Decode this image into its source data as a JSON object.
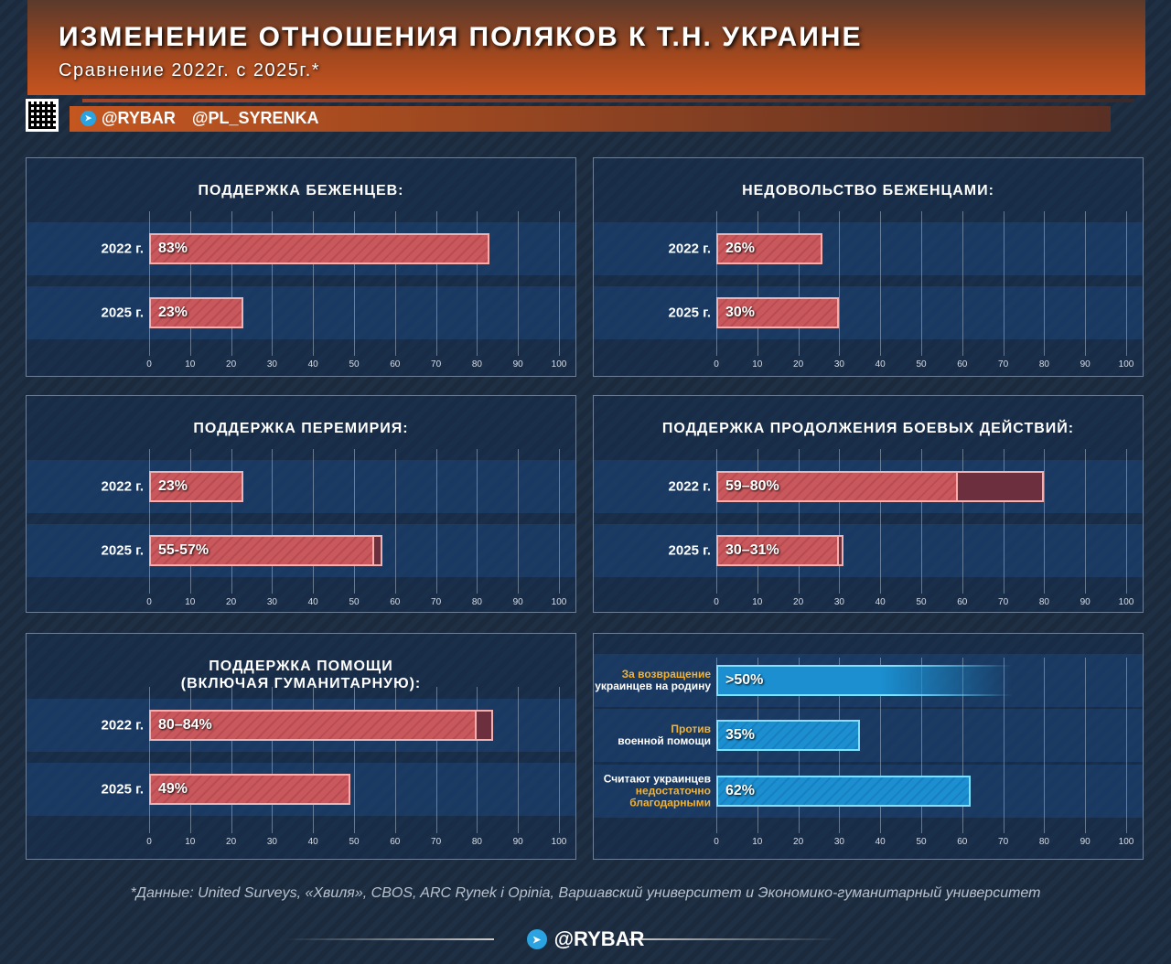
{
  "header": {
    "title": "ИЗМЕНЕНИЕ ОТНОШЕНИЯ ПОЛЯКОВ К Т.Н. УКРАИНЕ",
    "subtitle": "Сравнение 2022г. с 2025г.*",
    "handle1": "@RYBAR",
    "handle2": "@PL_SYRENKA"
  },
  "chart_data": [
    {
      "type": "bar",
      "title": "ПОДДЕРЖКА БЕЖЕНЦЕВ:",
      "categories": [
        "2022 г.",
        "2025 г."
      ],
      "values": [
        [
          83,
          83
        ],
        [
          23,
          23
        ]
      ],
      "labels": [
        "83%",
        "23%"
      ],
      "xlim": [
        0,
        100
      ],
      "ticks": [
        0,
        10,
        20,
        30,
        40,
        50,
        60,
        70,
        80,
        90,
        100
      ]
    },
    {
      "type": "bar",
      "title": "НЕДОВОЛЬСТВО БЕЖЕНЦАМИ:",
      "categories": [
        "2022 г.",
        "2025 г."
      ],
      "values": [
        [
          26,
          26
        ],
        [
          30,
          30
        ]
      ],
      "labels": [
        "26%",
        "30%"
      ],
      "xlim": [
        0,
        100
      ],
      "ticks": [
        0,
        10,
        20,
        30,
        40,
        50,
        60,
        70,
        80,
        90,
        100
      ]
    },
    {
      "type": "bar",
      "title": "ПОДДЕРЖКА ПЕРЕМИРИЯ:",
      "categories": [
        "2022 г.",
        "2025 г."
      ],
      "values": [
        [
          23,
          23
        ],
        [
          55,
          57
        ]
      ],
      "labels": [
        "23%",
        "55-57%"
      ],
      "xlim": [
        0,
        100
      ],
      "ticks": [
        0,
        10,
        20,
        30,
        40,
        50,
        60,
        70,
        80,
        90,
        100
      ]
    },
    {
      "type": "bar",
      "title": "ПОДДЕРЖКА ПРОДОЛЖЕНИЯ БОЕВЫХ ДЕЙСТВИЙ:",
      "categories": [
        "2022 г.",
        "2025 г."
      ],
      "values": [
        [
          59,
          80
        ],
        [
          30,
          31
        ]
      ],
      "labels": [
        "59–80%",
        "30–31%"
      ],
      "xlim": [
        0,
        100
      ],
      "ticks": [
        0,
        10,
        20,
        30,
        40,
        50,
        60,
        70,
        80,
        90,
        100
      ]
    },
    {
      "type": "bar",
      "title": "ПОДДЕРЖКА ПОМОЩИ",
      "title2": "(ВКЛЮЧАЯ ГУМАНИТАРНУЮ):",
      "categories": [
        "2022 г.",
        "2025 г."
      ],
      "values": [
        [
          80,
          84
        ],
        [
          49,
          49
        ]
      ],
      "labels": [
        "80–84%",
        "49%"
      ],
      "xlim": [
        0,
        100
      ],
      "ticks": [
        0,
        10,
        20,
        30,
        40,
        50,
        60,
        70,
        80,
        90,
        100
      ]
    },
    {
      "type": "bar",
      "title": "",
      "categories": [
        [
          {
            "t": "За возвращение",
            "y": true
          },
          {
            "t": "украинцев на родину",
            "y": false
          }
        ],
        [
          {
            "t": "Против",
            "y": true
          },
          {
            "t": "военной помощи",
            "y": false
          }
        ],
        [
          {
            "t": "Считают украинцев",
            "y": false
          },
          {
            "t": "недостаточно",
            "y": true
          },
          {
            "t": "благодарными",
            "y": true
          }
        ]
      ],
      "values": [
        [
          50,
          50
        ],
        [
          35,
          35
        ],
        [
          62,
          62
        ]
      ],
      "labels": [
        ">50%",
        "35%",
        "62%"
      ],
      "xlim": [
        0,
        100
      ],
      "ticks": [
        0,
        10,
        20,
        30,
        40,
        50,
        60,
        70,
        80,
        90,
        100
      ],
      "color": "#1b8fd0"
    }
  ],
  "footnote": "*Данные: United Surveys, «Хвиля», CBOS, ARC Rynek i Opinia, Варшавский университет и Экономико-гуманитарный университет",
  "footer": {
    "brand": "@RYBAR"
  }
}
